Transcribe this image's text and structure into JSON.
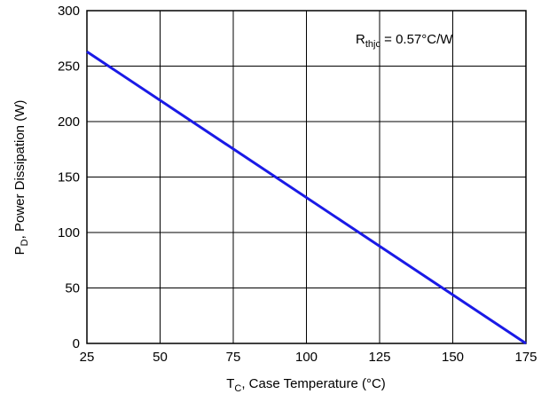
{
  "chart_data": {
    "type": "line",
    "title": "",
    "xlabel": {
      "main": "T",
      "sub": "C",
      "rest": ", Case Temperature (°C)"
    },
    "ylabel": {
      "main": "P",
      "sub": "D",
      "rest": ", Power Dissipation (W)"
    },
    "xlim": [
      25,
      175
    ],
    "ylim": [
      0,
      300
    ],
    "xticks": [
      25,
      50,
      75,
      100,
      125,
      150,
      175
    ],
    "yticks": [
      0,
      50,
      100,
      150,
      200,
      250,
      300
    ],
    "xtick_labels": [
      "25",
      "50",
      "75",
      "100",
      "125",
      "150",
      "175"
    ],
    "ytick_labels": [
      "0",
      "50",
      "100",
      "150",
      "200",
      "250",
      "300"
    ],
    "grid": true,
    "series": [
      {
        "values": [
          {
            "x": 25,
            "y": 263
          },
          {
            "x": 175,
            "y": 0
          }
        ],
        "color": "#1a1ae6"
      }
    ],
    "annotation": {
      "main": "R",
      "sub": "thjc",
      "rest": " = 0.57°C/W"
    }
  }
}
